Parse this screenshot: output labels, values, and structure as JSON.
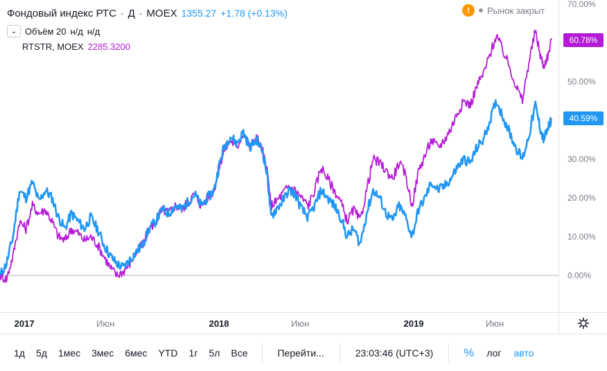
{
  "legend": {
    "title": "Фондовый индекс РТС",
    "interval": "Д",
    "exchange": "MOEX",
    "price": "1355.27",
    "change": "+1.78 (+0.13%)",
    "volume_label": "Объём 20",
    "volume_value1": "н/д",
    "volume_value2": "н/д",
    "compare_symbol": "RTSTR, MOEX",
    "compare_value": "2285.3200"
  },
  "status": {
    "warning_glyph": "!",
    "text": "Рынок закрыт"
  },
  "colors": {
    "main_series": "#2196f3",
    "compare_series": "#b51ad6",
    "baseline": "#b2b5be"
  },
  "chart_data": {
    "type": "line",
    "x_unit": "months since 2016-11-15",
    "xlim": [
      0,
      33.5
    ],
    "ylim": [
      -11.5,
      70
    ],
    "y_ticks": [
      "70.00%",
      "60.00%",
      "50.00%",
      "40.00%",
      "30.00%",
      "20.00%",
      "10.00%",
      "0.00%"
    ],
    "y_tick_values": [
      70,
      60,
      50,
      40,
      30,
      20,
      10,
      0
    ],
    "x_ticks": [
      {
        "label": "2017",
        "x": 1.5,
        "major": true
      },
      {
        "label": "Июн",
        "x": 6.5,
        "major": false
      },
      {
        "label": "2018",
        "x": 13.5,
        "major": true
      },
      {
        "label": "Июн",
        "x": 18.5,
        "major": false
      },
      {
        "label": "2019",
        "x": 25.5,
        "major": true
      },
      {
        "label": "Июн",
        "x": 30.5,
        "major": false
      }
    ],
    "series": [
      {
        "name": "Фондовый индекс РТС",
        "color": "#2196f3",
        "last_label": "40.59%",
        "last_value": 40.59,
        "points": [
          [
            0,
            0
          ],
          [
            0.4,
            3
          ],
          [
            0.8,
            10
          ],
          [
            1.2,
            22
          ],
          [
            1.6,
            20
          ],
          [
            2.0,
            24
          ],
          [
            2.4,
            19
          ],
          [
            2.8,
            22
          ],
          [
            3.2,
            20
          ],
          [
            3.6,
            15
          ],
          [
            4.0,
            12
          ],
          [
            4.4,
            16
          ],
          [
            4.8,
            14
          ],
          [
            5.2,
            12
          ],
          [
            5.6,
            15
          ],
          [
            6.0,
            12
          ],
          [
            6.4,
            8
          ],
          [
            6.8,
            5
          ],
          [
            7.2,
            3
          ],
          [
            7.6,
            2
          ],
          [
            8.0,
            4
          ],
          [
            8.4,
            6
          ],
          [
            8.8,
            8
          ],
          [
            9.2,
            12
          ],
          [
            9.6,
            14
          ],
          [
            10.0,
            17
          ],
          [
            10.4,
            16
          ],
          [
            10.8,
            18
          ],
          [
            11.2,
            17
          ],
          [
            11.6,
            19
          ],
          [
            12.0,
            21
          ],
          [
            12.4,
            18
          ],
          [
            12.8,
            20
          ],
          [
            13.2,
            22
          ],
          [
            13.5,
            28
          ],
          [
            13.8,
            33
          ],
          [
            14.2,
            36
          ],
          [
            14.6,
            34
          ],
          [
            15.0,
            37
          ],
          [
            15.4,
            33
          ],
          [
            15.8,
            35
          ],
          [
            16.2,
            32
          ],
          [
            16.5,
            25
          ],
          [
            16.7,
            15
          ],
          [
            17.0,
            17
          ],
          [
            17.4,
            19
          ],
          [
            17.8,
            22
          ],
          [
            18.2,
            21
          ],
          [
            18.6,
            17
          ],
          [
            19.0,
            15
          ],
          [
            19.4,
            18
          ],
          [
            19.8,
            22
          ],
          [
            20.2,
            20
          ],
          [
            20.6,
            18
          ],
          [
            21.0,
            15
          ],
          [
            21.4,
            10
          ],
          [
            21.8,
            12
          ],
          [
            22.2,
            8
          ],
          [
            22.6,
            16
          ],
          [
            23.0,
            22
          ],
          [
            23.4,
            20
          ],
          [
            23.8,
            16
          ],
          [
            24.2,
            14
          ],
          [
            24.6,
            18
          ],
          [
            25.0,
            15
          ],
          [
            25.4,
            10
          ],
          [
            25.8,
            17
          ],
          [
            26.2,
            20
          ],
          [
            26.6,
            24
          ],
          [
            27.0,
            22
          ],
          [
            27.4,
            23
          ],
          [
            27.8,
            25
          ],
          [
            28.2,
            28
          ],
          [
            28.6,
            30
          ],
          [
            29.0,
            29
          ],
          [
            29.4,
            33
          ],
          [
            29.8,
            35
          ],
          [
            30.2,
            40
          ],
          [
            30.6,
            45
          ],
          [
            31.0,
            41
          ],
          [
            31.4,
            37
          ],
          [
            31.8,
            33
          ],
          [
            32.2,
            30
          ],
          [
            32.6,
            36
          ],
          [
            33.0,
            44
          ],
          [
            33.3,
            38
          ],
          [
            33.5,
            35
          ],
          [
            33.8,
            38
          ],
          [
            34.0,
            40.59
          ]
        ]
      },
      {
        "name": "RTSTR, MOEX",
        "color": "#b51ad6",
        "last_label": "60.78%",
        "last_value": 60.78,
        "points": [
          [
            0,
            0
          ],
          [
            0.4,
            -1
          ],
          [
            0.8,
            5
          ],
          [
            1.2,
            14
          ],
          [
            1.6,
            12
          ],
          [
            2.0,
            18
          ],
          [
            2.4,
            16
          ],
          [
            2.8,
            17
          ],
          [
            3.2,
            14
          ],
          [
            3.6,
            10
          ],
          [
            4.0,
            9
          ],
          [
            4.4,
            12
          ],
          [
            4.8,
            11
          ],
          [
            5.2,
            9
          ],
          [
            5.6,
            10
          ],
          [
            6.0,
            8
          ],
          [
            6.4,
            5
          ],
          [
            6.8,
            2
          ],
          [
            7.2,
            0
          ],
          [
            7.6,
            1
          ],
          [
            8.0,
            3
          ],
          [
            8.4,
            6
          ],
          [
            8.8,
            8
          ],
          [
            9.2,
            12
          ],
          [
            9.6,
            14
          ],
          [
            10.0,
            17
          ],
          [
            10.4,
            16
          ],
          [
            10.8,
            18
          ],
          [
            11.2,
            17
          ],
          [
            11.6,
            19
          ],
          [
            12.0,
            21
          ],
          [
            12.4,
            18
          ],
          [
            12.8,
            20
          ],
          [
            13.2,
            22
          ],
          [
            13.5,
            28
          ],
          [
            13.8,
            32
          ],
          [
            14.2,
            35
          ],
          [
            14.6,
            33
          ],
          [
            15.0,
            37
          ],
          [
            15.4,
            33
          ],
          [
            15.8,
            36
          ],
          [
            16.2,
            32
          ],
          [
            16.5,
            26
          ],
          [
            16.7,
            18
          ],
          [
            17.0,
            19
          ],
          [
            17.4,
            21
          ],
          [
            17.8,
            23
          ],
          [
            18.2,
            22
          ],
          [
            18.6,
            20
          ],
          [
            19.0,
            18
          ],
          [
            19.4,
            22
          ],
          [
            19.8,
            28
          ],
          [
            20.2,
            25
          ],
          [
            20.6,
            22
          ],
          [
            21.0,
            19
          ],
          [
            21.4,
            14
          ],
          [
            21.8,
            17
          ],
          [
            22.2,
            14
          ],
          [
            22.6,
            22
          ],
          [
            23.0,
            30
          ],
          [
            23.4,
            29
          ],
          [
            23.8,
            27
          ],
          [
            24.2,
            25
          ],
          [
            24.6,
            29
          ],
          [
            25.0,
            26
          ],
          [
            25.4,
            18
          ],
          [
            25.8,
            27
          ],
          [
            26.2,
            31
          ],
          [
            26.6,
            35
          ],
          [
            27.0,
            33
          ],
          [
            27.4,
            35
          ],
          [
            27.8,
            38
          ],
          [
            28.2,
            42
          ],
          [
            28.6,
            45
          ],
          [
            29.0,
            44
          ],
          [
            29.4,
            49
          ],
          [
            29.8,
            52
          ],
          [
            30.2,
            57
          ],
          [
            30.6,
            62
          ],
          [
            31.0,
            58
          ],
          [
            31.4,
            54
          ],
          [
            31.8,
            49
          ],
          [
            32.2,
            45
          ],
          [
            32.6,
            55
          ],
          [
            33.0,
            63
          ],
          [
            33.3,
            57
          ],
          [
            33.5,
            54
          ],
          [
            33.8,
            57
          ],
          [
            34.0,
            60.78
          ]
        ]
      }
    ]
  },
  "bottom_bar": {
    "ranges": [
      "1д",
      "5д",
      "1мес",
      "3мес",
      "6мес",
      "YTD",
      "1г",
      "5л",
      "Все"
    ],
    "goto_label": "Перейти...",
    "clock": "23:03:46 (UTC+3)",
    "percent_label": "%",
    "log_label": "лог",
    "auto_label": "авто"
  }
}
